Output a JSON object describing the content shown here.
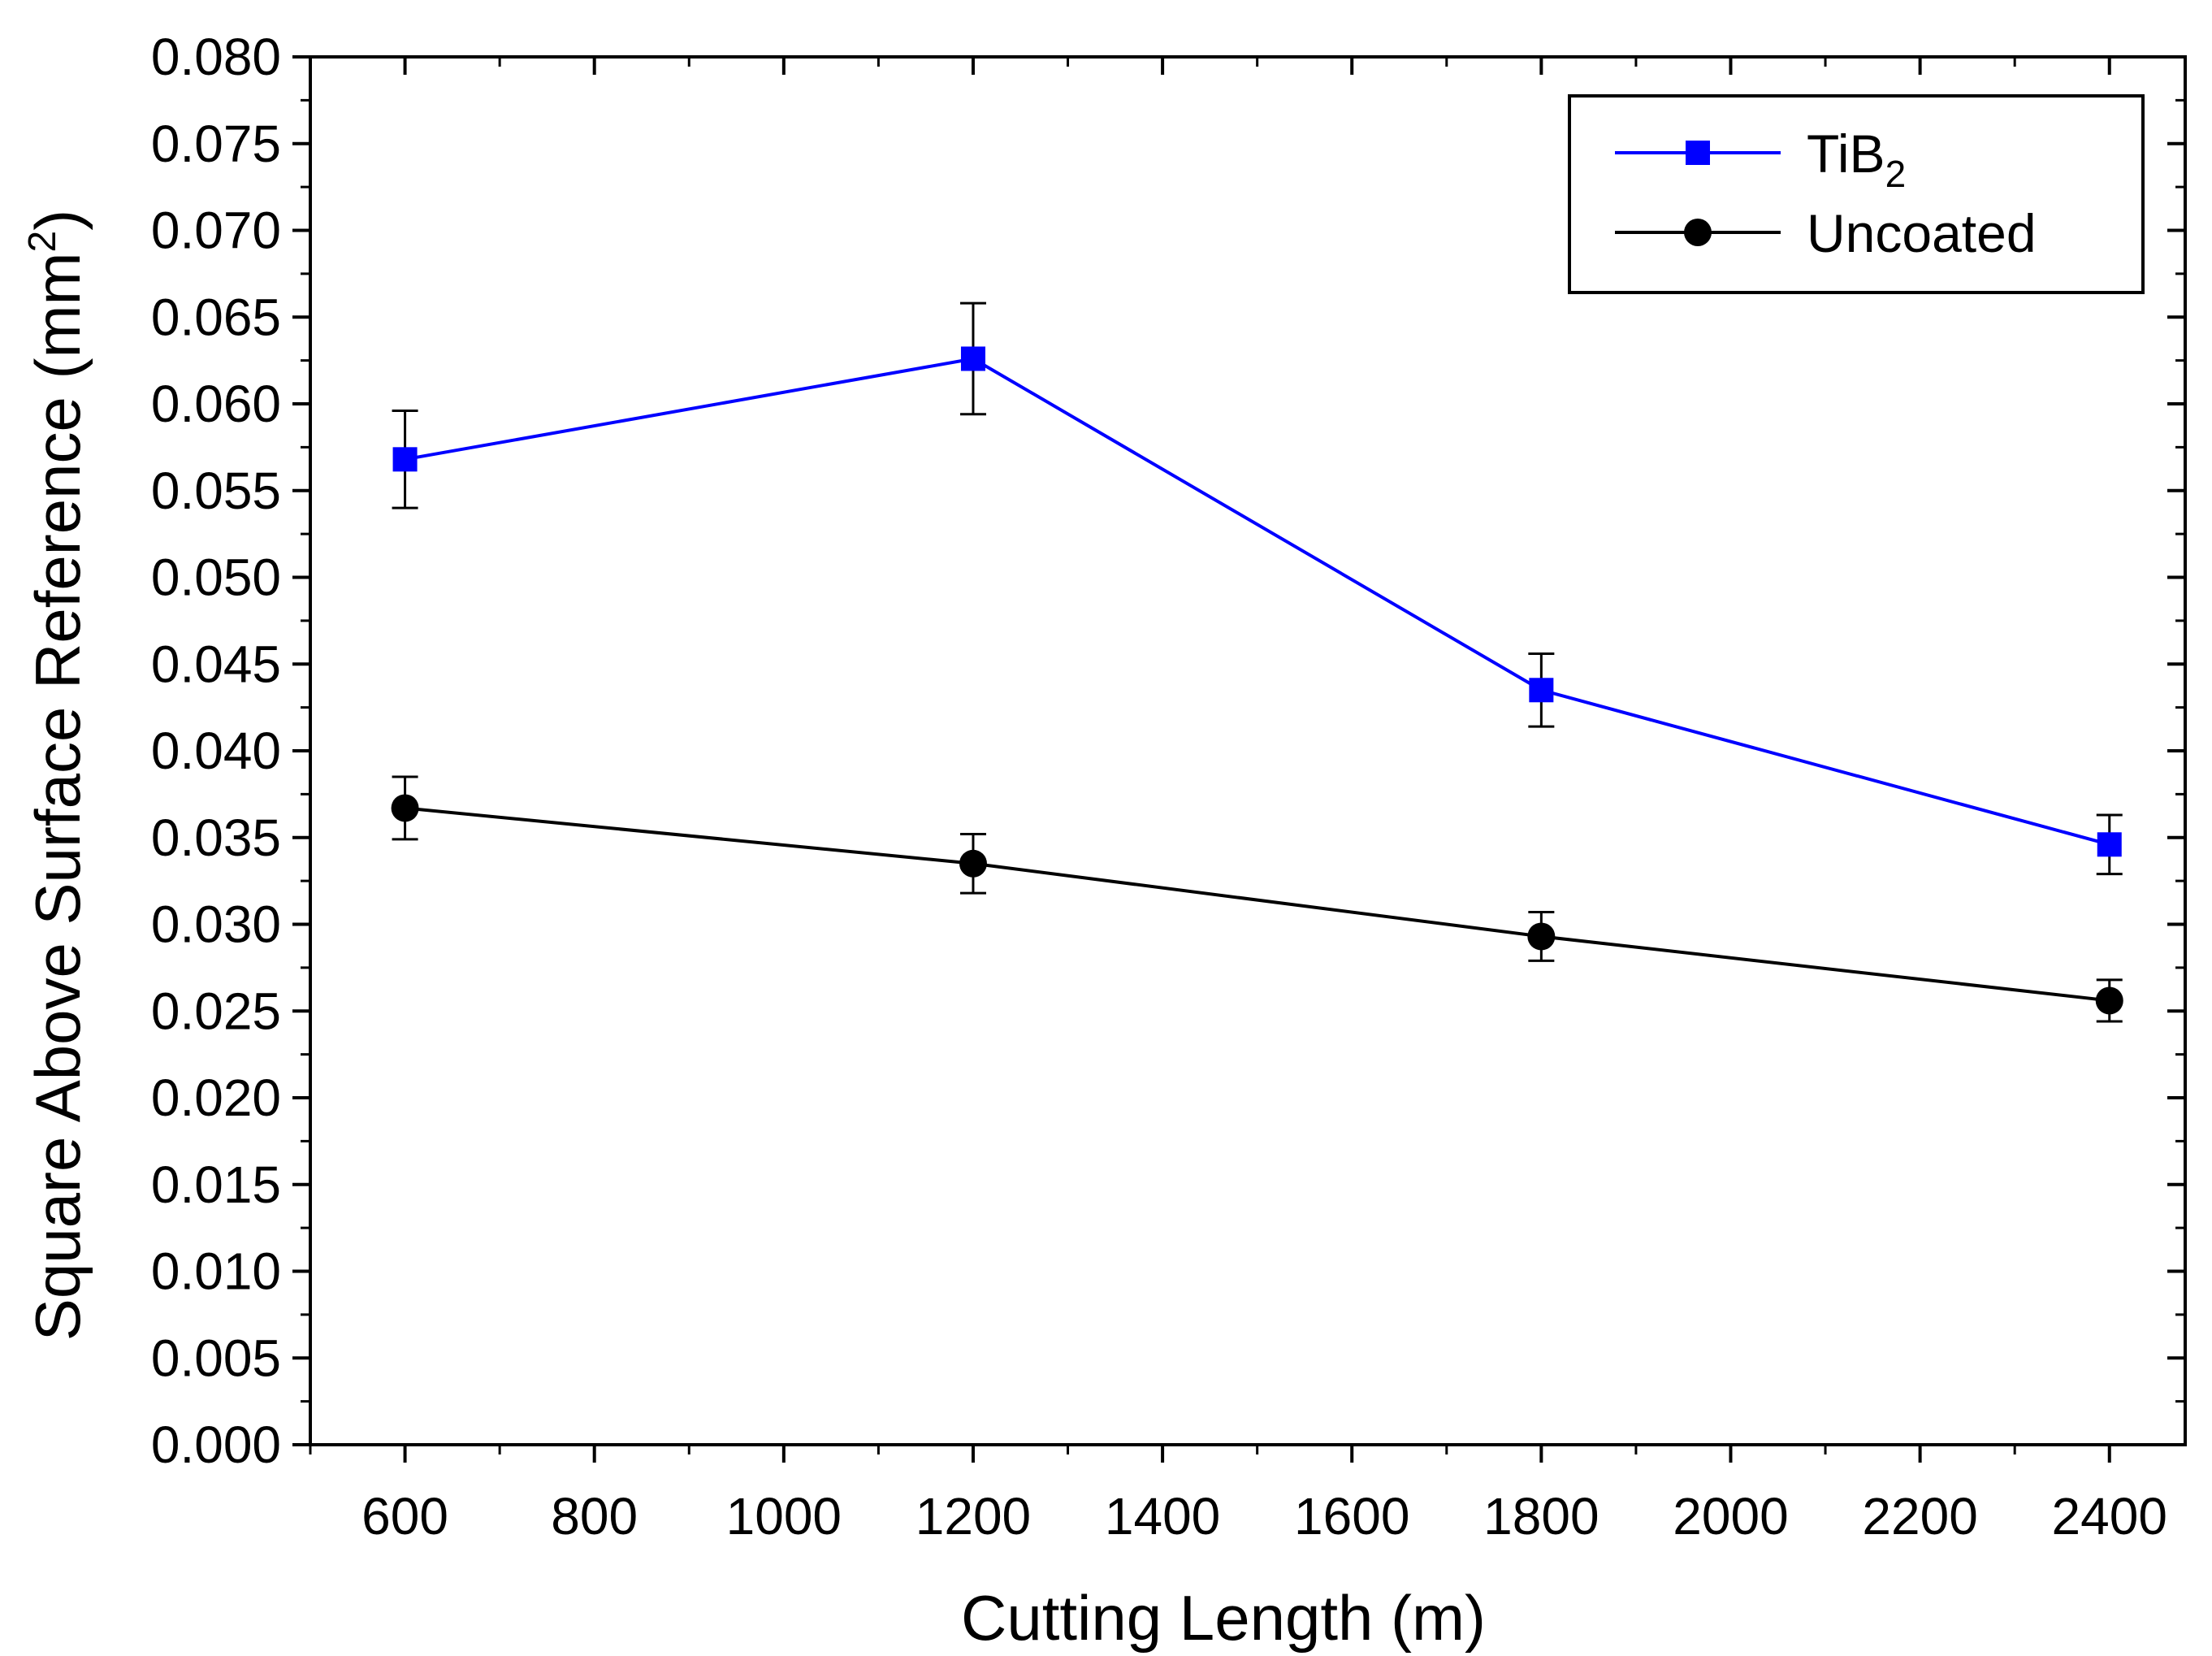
{
  "chart_data": {
    "type": "line",
    "title": "",
    "xlabel": "Cutting Length (m)",
    "ylabel": {
      "main": "Square Above Surface Reference (mm",
      "sup": "2",
      "close": ")"
    },
    "xlim": [
      500,
      2480
    ],
    "ylim": [
      0.0,
      0.08
    ],
    "x_ticks": [
      600,
      800,
      1000,
      1200,
      1400,
      1600,
      1800,
      2000,
      2200,
      2400
    ],
    "x_tick_labels": [
      "600",
      "800",
      "1000",
      "1200",
      "1400",
      "1600",
      "1800",
      "2000",
      "2200",
      "2400"
    ],
    "y_ticks": [
      0.0,
      0.005,
      0.01,
      0.015,
      0.02,
      0.025,
      0.03,
      0.035,
      0.04,
      0.045,
      0.05,
      0.055,
      0.06,
      0.065,
      0.07,
      0.075,
      0.08
    ],
    "y_tick_labels": [
      "0.000",
      "0.005",
      "0.010",
      "0.015",
      "0.020",
      "0.025",
      "0.030",
      "0.035",
      "0.040",
      "0.045",
      "0.050",
      "0.055",
      "0.060",
      "0.065",
      "0.070",
      "0.075",
      "0.080"
    ],
    "x": [
      600,
      1200,
      1800,
      2400
    ],
    "series": [
      {
        "name": "TiB2",
        "legend_main": "TiB",
        "legend_sub": "2",
        "color": "#0000ff",
        "marker": "square",
        "values": [
          0.0568,
          0.0626,
          0.0435,
          0.0346
        ],
        "errors": [
          0.0028,
          0.0032,
          0.0021,
          0.0017
        ]
      },
      {
        "name": "Uncoated",
        "legend_main": "Uncoated",
        "legend_sub": "",
        "color": "#000000",
        "marker": "circle",
        "values": [
          0.0367,
          0.0335,
          0.0293,
          0.0256
        ],
        "errors": [
          0.0018,
          0.0017,
          0.0014,
          0.0012
        ]
      }
    ],
    "legend_position": "top-right",
    "grid": false
  }
}
